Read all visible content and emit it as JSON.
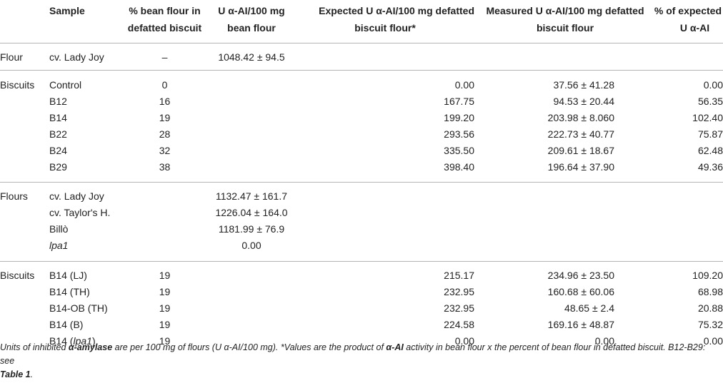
{
  "header": {
    "sample": "Sample",
    "pct_line1": "% bean flour in",
    "pct_line2": "defatted biscuit",
    "u_line1": "U α-AI/100 mg",
    "u_line2": "bean flour",
    "exp_line1": "Expected U α-AI/100 mg defatted",
    "exp_line2": "biscuit flour*",
    "meas_line1": "Measured U α-AI/100 mg defatted",
    "meas_line2": "biscuit flour",
    "pctexp_line1": "% of expected",
    "pctexp_line2": "U α-AI"
  },
  "rows": [
    {
      "group": "Flour",
      "sample": "cv. Lady Joy",
      "pct": "–",
      "u": "1048.42 ± 94.5",
      "expected": "",
      "measured": "",
      "pct_expected": ""
    },
    {
      "group": "Biscuits",
      "sample": "Control",
      "pct": "0",
      "u": "",
      "expected": "0.00",
      "measured": "37.56 ± 41.28",
      "pct_expected": "0.00"
    },
    {
      "group": "",
      "sample": "B12",
      "pct": "16",
      "u": "",
      "expected": "167.75",
      "measured": "94.53 ± 20.44",
      "pct_expected": "56.35"
    },
    {
      "group": "",
      "sample": "B14",
      "pct": "19",
      "u": "",
      "expected": "199.20",
      "measured": "203.98 ± 8.060",
      "pct_expected": "102.40"
    },
    {
      "group": "",
      "sample": "B22",
      "pct": "28",
      "u": "",
      "expected": "293.56",
      "measured": "222.73 ± 40.77",
      "pct_expected": "75.87"
    },
    {
      "group": "",
      "sample": "B24",
      "pct": "32",
      "u": "",
      "expected": "335.50",
      "measured": "209.61 ± 18.67",
      "pct_expected": "62.48"
    },
    {
      "group": "",
      "sample": "B29",
      "pct": "38",
      "u": "",
      "expected": "398.40",
      "measured": "196.64 ± 37.90",
      "pct_expected": "49.36"
    },
    {
      "group": "Flours",
      "sample": "cv. Lady Joy",
      "pct": "",
      "u": "1132.47 ± 161.7",
      "expected": "",
      "measured": "",
      "pct_expected": ""
    },
    {
      "group": "",
      "sample": "cv. Taylor's H.",
      "pct": "",
      "u": "1226.04 ± 164.0",
      "expected": "",
      "measured": "",
      "pct_expected": ""
    },
    {
      "group": "",
      "sample": "Billò",
      "pct": "",
      "u": "1181.99 ± 76.9",
      "expected": "",
      "measured": "",
      "pct_expected": ""
    },
    {
      "group": "",
      "sample": "lpa1",
      "pct": "",
      "u": "0.00",
      "expected": "",
      "measured": "",
      "pct_expected": ""
    },
    {
      "group": "Biscuits",
      "sample": "B14 (LJ)",
      "pct": "19",
      "u": "",
      "expected": "215.17",
      "measured": "234.96 ± 23.50",
      "pct_expected": "109.20"
    },
    {
      "group": "",
      "sample": "B14 (TH)",
      "pct": "19",
      "u": "",
      "expected": "232.95",
      "measured": "160.68 ± 60.06",
      "pct_expected": "68.98"
    },
    {
      "group": "",
      "sample": "B14-OB (TH)",
      "pct": "19",
      "u": "",
      "expected": "232.95",
      "measured": "48.65 ± 2.4",
      "pct_expected": "20.88"
    },
    {
      "group": "",
      "sample": "B14 (B)",
      "pct": "19",
      "u": "",
      "expected": "224.58",
      "measured": "169.16 ± 48.87",
      "pct_expected": "75.32"
    },
    {
      "group": "",
      "sample": "B14 (lpa1)",
      "pct": "19",
      "u": "",
      "expected": "0.00",
      "measured": "0.00",
      "pct_expected": "0.00"
    }
  ],
  "footnote": {
    "part1": "Units of inhibited ",
    "alpha_amylase": "α-amylase",
    "part2": " are per 100 mg of flours (U α-AI/100 mg). *Values are the product of ",
    "alpha_ai": "α-AI",
    "part3": " activity in bean flour x the percent of bean flour in defatted biscuit. B12-B29: see",
    "table_ref": "Table 1",
    "end": "."
  }
}
